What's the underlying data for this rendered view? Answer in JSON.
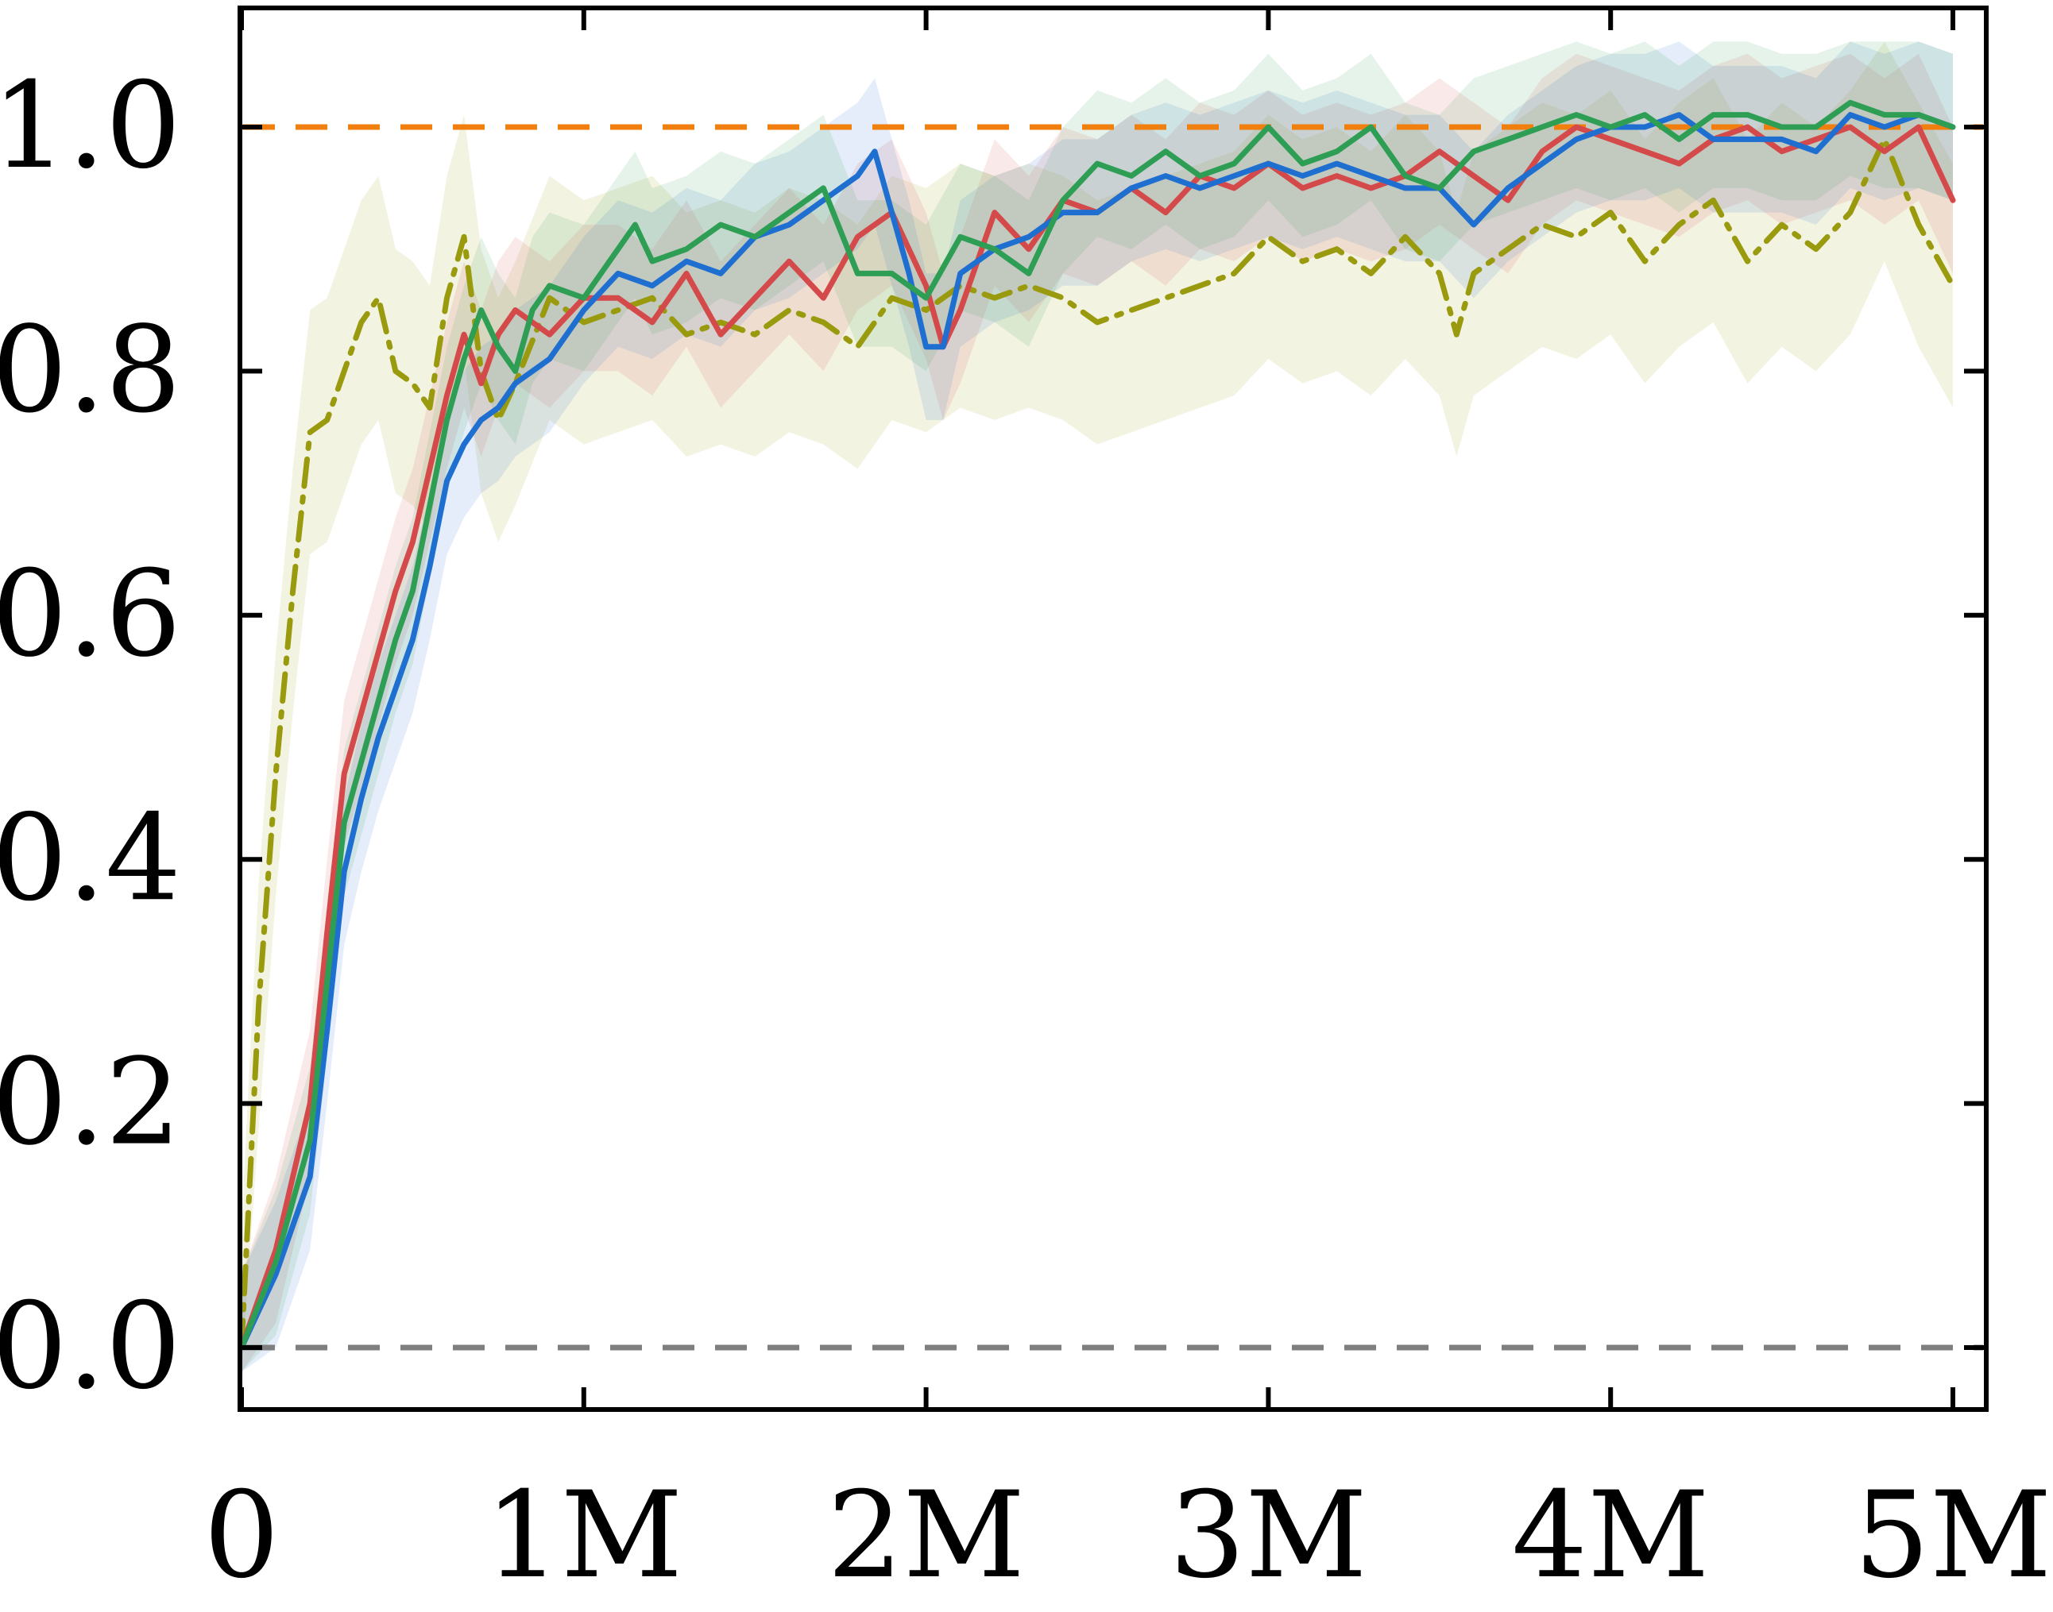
{
  "chart_data": {
    "type": "line",
    "title": "",
    "xlabel": "",
    "ylabel": "",
    "xlim": [
      0,
      5000000
    ],
    "ylim": [
      -0.1,
      1.1
    ],
    "x_ticks": [
      {
        "value": 0,
        "label": "0"
      },
      {
        "value": 1000000,
        "label": "1M"
      },
      {
        "value": 2000000,
        "label": "2M"
      },
      {
        "value": 3000000,
        "label": "3M"
      },
      {
        "value": 4000000,
        "label": "4M"
      },
      {
        "value": 5000000,
        "label": "5M"
      }
    ],
    "y_ticks": [
      {
        "value": 0.0,
        "label": "0.0"
      },
      {
        "value": 0.2,
        "label": "0.2"
      },
      {
        "value": 0.4,
        "label": "0.4"
      },
      {
        "value": 0.6,
        "label": "0.6"
      },
      {
        "value": 0.8,
        "label": "0.8"
      },
      {
        "value": 1.0,
        "label": "1.0"
      }
    ],
    "grid": false,
    "reference_lines": [
      {
        "y": 1.0,
        "color": "#f07f0e",
        "style": "dashed"
      },
      {
        "y": 0.0,
        "color": "#7f7f7f",
        "style": "dashed"
      }
    ],
    "series": [
      {
        "color": "#9a9a0e",
        "style": "dashdot",
        "band_width": 0.1,
        "x": [
          0,
          50000,
          100000,
          150000,
          200000,
          250000,
          300000,
          350000,
          400000,
          450000,
          500000,
          550000,
          600000,
          650000,
          700000,
          750000,
          800000,
          900000,
          1000000,
          1100000,
          1200000,
          1300000,
          1400000,
          1500000,
          1600000,
          1700000,
          1800000,
          1900000,
          2000000,
          2100000,
          2200000,
          2300000,
          2400000,
          2500000,
          2600000,
          2700000,
          2800000,
          2900000,
          3000000,
          3100000,
          3200000,
          3300000,
          3400000,
          3500000,
          3550000,
          3600000,
          3700000,
          3800000,
          3900000,
          4000000,
          4100000,
          4200000,
          4300000,
          4400000,
          4500000,
          4600000,
          4700000,
          4800000,
          4900000,
          5000000
        ],
        "y": [
          0.0,
          0.28,
          0.47,
          0.62,
          0.75,
          0.76,
          0.8,
          0.84,
          0.86,
          0.8,
          0.79,
          0.77,
          0.86,
          0.91,
          0.8,
          0.76,
          0.79,
          0.86,
          0.84,
          0.85,
          0.86,
          0.83,
          0.84,
          0.83,
          0.85,
          0.84,
          0.82,
          0.86,
          0.85,
          0.87,
          0.86,
          0.87,
          0.86,
          0.84,
          0.85,
          0.86,
          0.87,
          0.88,
          0.91,
          0.89,
          0.9,
          0.88,
          0.91,
          0.88,
          0.83,
          0.88,
          0.9,
          0.92,
          0.91,
          0.93,
          0.89,
          0.92,
          0.94,
          0.89,
          0.92,
          0.9,
          0.93,
          0.99,
          0.92,
          0.87
        ]
      },
      {
        "color": "#d44a4a",
        "style": "solid",
        "band_width": 0.06,
        "x": [
          0,
          100000,
          200000,
          250000,
          300000,
          350000,
          400000,
          450000,
          500000,
          550000,
          600000,
          650000,
          700000,
          750000,
          800000,
          900000,
          1000000,
          1100000,
          1200000,
          1300000,
          1400000,
          1500000,
          1600000,
          1700000,
          1800000,
          1900000,
          2000000,
          2050000,
          2100000,
          2200000,
          2300000,
          2400000,
          2500000,
          2600000,
          2700000,
          2800000,
          2900000,
          3000000,
          3100000,
          3200000,
          3300000,
          3400000,
          3500000,
          3600000,
          3700000,
          3800000,
          3900000,
          4000000,
          4100000,
          4200000,
          4300000,
          4400000,
          4500000,
          4600000,
          4700000,
          4800000,
          4900000,
          5000000
        ],
        "y": [
          0.0,
          0.08,
          0.2,
          0.34,
          0.47,
          0.52,
          0.57,
          0.62,
          0.66,
          0.72,
          0.78,
          0.83,
          0.79,
          0.83,
          0.85,
          0.83,
          0.86,
          0.86,
          0.84,
          0.88,
          0.83,
          0.86,
          0.89,
          0.86,
          0.91,
          0.93,
          0.87,
          0.82,
          0.85,
          0.93,
          0.9,
          0.94,
          0.93,
          0.95,
          0.93,
          0.96,
          0.95,
          0.97,
          0.95,
          0.96,
          0.95,
          0.96,
          0.98,
          0.96,
          0.94,
          0.98,
          1.0,
          0.99,
          0.98,
          0.97,
          0.99,
          1.0,
          0.98,
          0.99,
          1.0,
          0.98,
          1.0,
          0.94
        ]
      },
      {
        "color": "#1f6fd1",
        "style": "solid",
        "band_width": 0.06,
        "x": [
          0,
          100000,
          200000,
          250000,
          300000,
          350000,
          400000,
          450000,
          500000,
          550000,
          600000,
          650000,
          700000,
          750000,
          800000,
          900000,
          1000000,
          1100000,
          1200000,
          1300000,
          1400000,
          1500000,
          1600000,
          1700000,
          1800000,
          1850000,
          1900000,
          1950000,
          2000000,
          2050000,
          2100000,
          2200000,
          2300000,
          2400000,
          2500000,
          2600000,
          2700000,
          2800000,
          2900000,
          3000000,
          3100000,
          3200000,
          3300000,
          3400000,
          3500000,
          3600000,
          3700000,
          3800000,
          3900000,
          4000000,
          4100000,
          4200000,
          4300000,
          4400000,
          4500000,
          4600000,
          4700000,
          4800000,
          4900000,
          5000000
        ],
        "y": [
          0.0,
          0.06,
          0.14,
          0.26,
          0.39,
          0.45,
          0.5,
          0.54,
          0.58,
          0.64,
          0.71,
          0.74,
          0.76,
          0.77,
          0.79,
          0.81,
          0.85,
          0.88,
          0.87,
          0.89,
          0.88,
          0.91,
          0.92,
          0.94,
          0.96,
          0.98,
          0.93,
          0.88,
          0.82,
          0.82,
          0.88,
          0.9,
          0.91,
          0.93,
          0.93,
          0.95,
          0.96,
          0.95,
          0.96,
          0.97,
          0.96,
          0.97,
          0.96,
          0.95,
          0.95,
          0.92,
          0.95,
          0.97,
          0.99,
          1.0,
          1.0,
          1.01,
          0.99,
          0.99,
          0.99,
          0.98,
          1.01,
          1.0,
          1.01,
          1.0
        ]
      },
      {
        "color": "#2e9e55",
        "style": "solid",
        "band_width": 0.06,
        "x": [
          0,
          100000,
          200000,
          250000,
          300000,
          350000,
          400000,
          450000,
          500000,
          550000,
          600000,
          650000,
          700000,
          750000,
          800000,
          850000,
          900000,
          1000000,
          1100000,
          1150000,
          1200000,
          1300000,
          1400000,
          1500000,
          1600000,
          1700000,
          1800000,
          1900000,
          2000000,
          2100000,
          2200000,
          2300000,
          2400000,
          2500000,
          2600000,
          2700000,
          2800000,
          2900000,
          3000000,
          3100000,
          3200000,
          3300000,
          3400000,
          3500000,
          3600000,
          3700000,
          3800000,
          3900000,
          4000000,
          4100000,
          4200000,
          4300000,
          4400000,
          4500000,
          4600000,
          4700000,
          4800000,
          4900000,
          5000000
        ],
        "y": [
          0.0,
          0.07,
          0.17,
          0.3,
          0.43,
          0.48,
          0.53,
          0.58,
          0.62,
          0.69,
          0.76,
          0.81,
          0.85,
          0.82,
          0.8,
          0.85,
          0.87,
          0.86,
          0.9,
          0.92,
          0.89,
          0.9,
          0.92,
          0.91,
          0.93,
          0.95,
          0.88,
          0.88,
          0.86,
          0.91,
          0.9,
          0.88,
          0.94,
          0.97,
          0.96,
          0.98,
          0.96,
          0.97,
          1.0,
          0.97,
          0.98,
          1.0,
          0.96,
          0.95,
          0.98,
          0.99,
          1.0,
          1.01,
          1.0,
          1.01,
          0.99,
          1.01,
          1.01,
          1.0,
          1.0,
          1.02,
          1.01,
          1.01,
          1.0
        ]
      }
    ]
  }
}
